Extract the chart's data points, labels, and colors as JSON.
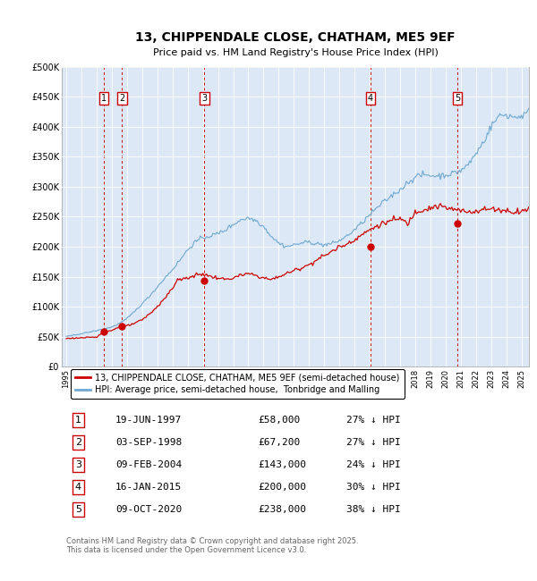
{
  "title": "13, CHIPPENDALE CLOSE, CHATHAM, ME5 9EF",
  "subtitle": "Price paid vs. HM Land Registry's House Price Index (HPI)",
  "xlim": [
    1994.7,
    2025.5
  ],
  "ylim": [
    0,
    500000
  ],
  "yticks": [
    0,
    50000,
    100000,
    150000,
    200000,
    250000,
    300000,
    350000,
    400000,
    450000,
    500000
  ],
  "ytick_labels": [
    "£0",
    "£50K",
    "£100K",
    "£150K",
    "£200K",
    "£250K",
    "£300K",
    "£350K",
    "£400K",
    "£450K",
    "£500K"
  ],
  "plot_bg_color": "#dce8f5",
  "hpi_color": "#6fa8d0",
  "price_color": "#cc0000",
  "vline_color": "#cc0000",
  "sale_dates": [
    1997.46,
    1998.67,
    2004.11,
    2015.04,
    2020.77
  ],
  "sale_prices": [
    58000,
    67200,
    143000,
    200000,
    238000
  ],
  "sale_labels": [
    "1",
    "2",
    "3",
    "4",
    "5"
  ],
  "table_data": [
    [
      "1",
      "19-JUN-1997",
      "£58,000",
      "27% ↓ HPI"
    ],
    [
      "2",
      "03-SEP-1998",
      "£67,200",
      "27% ↓ HPI"
    ],
    [
      "3",
      "09-FEB-2004",
      "£143,000",
      "24% ↓ HPI"
    ],
    [
      "4",
      "16-JAN-2015",
      "£200,000",
      "30% ↓ HPI"
    ],
    [
      "5",
      "09-OCT-2020",
      "£238,000",
      "38% ↓ HPI"
    ]
  ],
  "legend_labels": [
    "13, CHIPPENDALE CLOSE, CHATHAM, ME5 9EF (semi-detached house)",
    "HPI: Average price, semi-detached house,  Tonbridge and Malling"
  ],
  "footnote": "Contains HM Land Registry data © Crown copyright and database right 2025.\nThis data is licensed under the Open Government Licence v3.0."
}
